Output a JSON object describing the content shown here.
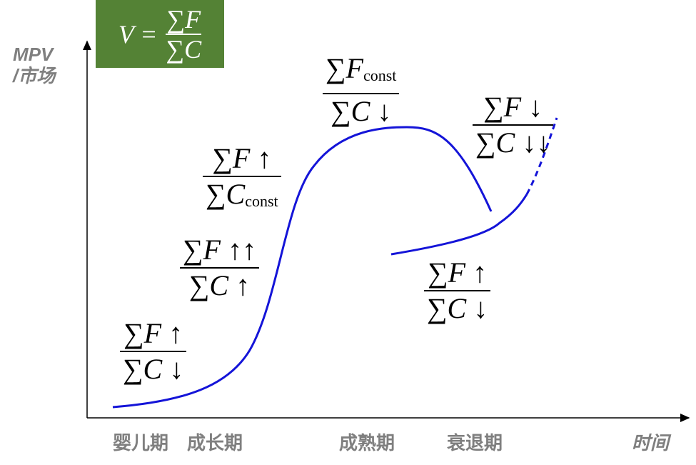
{
  "header": {
    "formula": {
      "lhs": "V =",
      "num": "∑F",
      "den": "∑C"
    }
  },
  "axes": {
    "y_label": [
      "MPV",
      "/市场"
    ],
    "x_label": "时间"
  },
  "stages": [
    "婴儿期",
    "成长期",
    "成熟期",
    "衰退期"
  ],
  "formulas": [
    {
      "num": "∑F ↑",
      "den": "∑C ↓"
    },
    {
      "num": "∑F ↑↑",
      "den": "∑C ↑"
    },
    {
      "num": "∑F ↑",
      "den": "∑C",
      "den_sub": "const"
    },
    {
      "num": "∑F",
      "num_sub": "const",
      "den": "∑C ↓"
    },
    {
      "num": "∑F ↓",
      "den": "∑C ↓↓"
    },
    {
      "num": "∑F ↑",
      "den": "∑C ↓"
    }
  ]
}
